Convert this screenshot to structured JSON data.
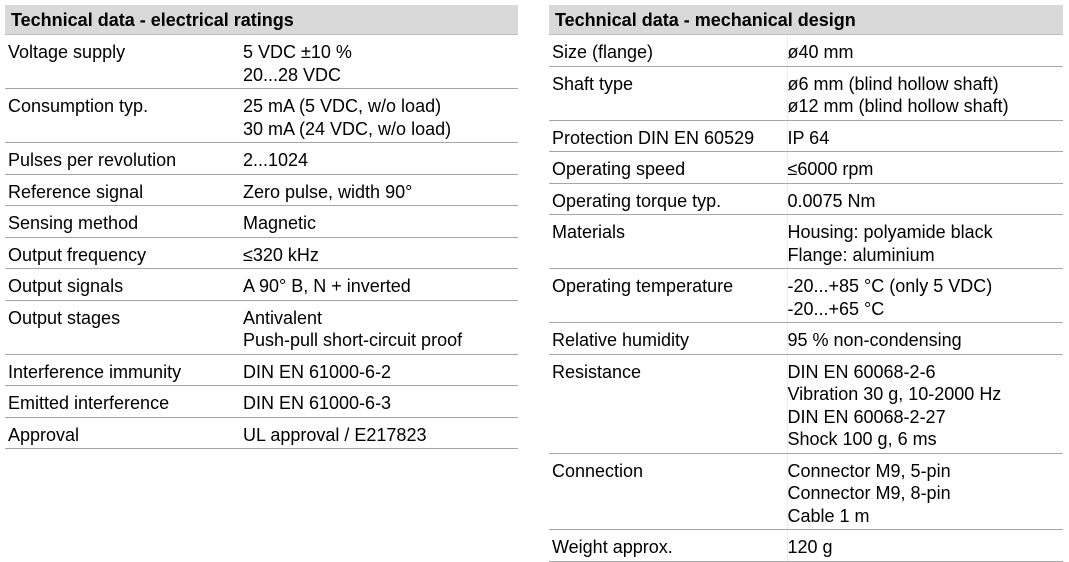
{
  "electrical": {
    "title": "Technical data - electrical ratings",
    "rows": [
      {
        "label": "Voltage supply",
        "values": [
          "5 VDC ±10 %",
          "20...28 VDC"
        ]
      },
      {
        "label": "Consumption typ.",
        "values": [
          "25 mA (5 VDC, w/o load)",
          "30 mA (24 VDC, w/o load)"
        ]
      },
      {
        "label": "Pulses per revolution",
        "values": [
          "2...1024"
        ]
      },
      {
        "label": "Reference signal",
        "values": [
          "Zero pulse, width 90°"
        ]
      },
      {
        "label": "Sensing method",
        "values": [
          "Magnetic"
        ]
      },
      {
        "label": "Output frequency",
        "values": [
          "≤320 kHz"
        ]
      },
      {
        "label": "Output signals",
        "values": [
          "A 90° B, N + inverted"
        ]
      },
      {
        "label": "Output stages",
        "values": [
          "Antivalent",
          "Push-pull short-circuit proof"
        ]
      },
      {
        "label": "Interference immunity",
        "values": [
          "DIN EN 61000-6-2"
        ]
      },
      {
        "label": "Emitted interference",
        "values": [
          "DIN EN 61000-6-3"
        ]
      },
      {
        "label": "Approval",
        "values": [
          "UL approval / E217823"
        ]
      }
    ]
  },
  "mechanical": {
    "title": "Technical data - mechanical design",
    "rows": [
      {
        "label": "Size (flange)",
        "values": [
          "ø40 mm"
        ]
      },
      {
        "label": "Shaft type",
        "values": [
          "ø6 mm (blind hollow shaft)",
          "ø12 mm (blind hollow shaft)"
        ]
      },
      {
        "label": "Protection DIN EN 60529",
        "values": [
          "IP 64"
        ]
      },
      {
        "label": "Operating speed",
        "values": [
          "≤6000 rpm"
        ]
      },
      {
        "label": "Operating torque typ.",
        "values": [
          "0.0075 Nm"
        ]
      },
      {
        "label": "Materials",
        "values": [
          "Housing: polyamide black",
          "Flange: aluminium"
        ]
      },
      {
        "label": "Operating temperature",
        "values": [
          "-20...+85 °C (only 5 VDC)",
          "-20...+65 °C"
        ]
      },
      {
        "label": "Relative humidity",
        "values": [
          "95 % non-condensing"
        ]
      },
      {
        "label": "Resistance",
        "values": [
          "DIN EN 60068-2-6",
          "Vibration 30 g, 10-2000 Hz",
          "DIN EN 60068-2-27",
          "Shock 100 g, 6 ms"
        ]
      },
      {
        "label": "Connection",
        "values": [
          "Connector M9, 5-pin",
          "Connector M9, 8-pin",
          "Cable 1 m"
        ]
      },
      {
        "label": "Weight approx.",
        "values": [
          "120 g"
        ]
      }
    ]
  }
}
